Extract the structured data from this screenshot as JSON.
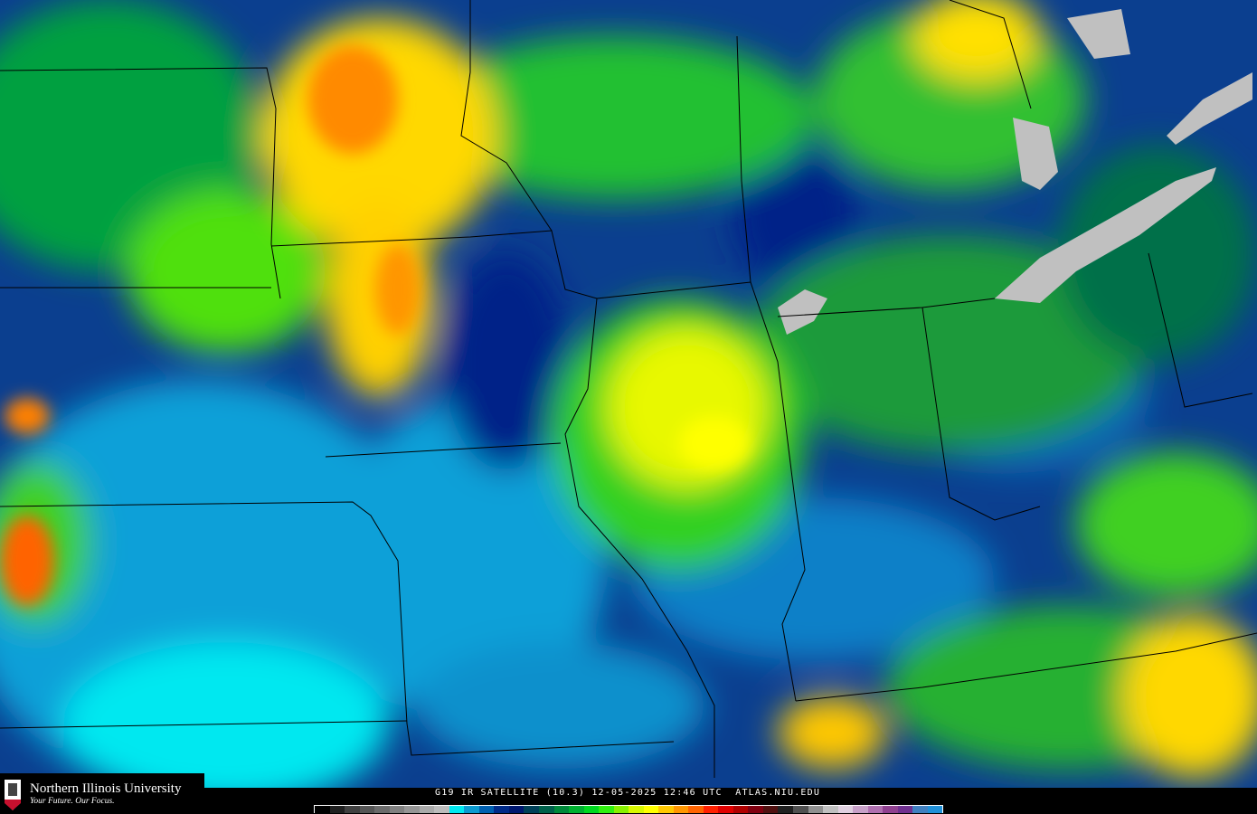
{
  "branding": {
    "university": "Northern Illinois University",
    "tagline": "Your Future. Our Focus.",
    "seal_text": "NIU"
  },
  "caption": {
    "satellite": "G19 IR SATELLITE (10.3)",
    "date": "12-05-2025",
    "time": "12:46 UTC",
    "site": "ATLAS.NIU.EDU"
  },
  "colors": {
    "background": "#0b3f8f",
    "cold_cloud": "#ffff00",
    "lake": "#c0c0c0"
  },
  "colorbar": [
    "#000000",
    "#202020",
    "#404040",
    "#555555",
    "#6a6a6a",
    "#808080",
    "#959595",
    "#aaaaaa",
    "#bcbcbc",
    "#00e8f0",
    "#0a9ad0",
    "#0060b0",
    "#002a88",
    "#001870",
    "#004058",
    "#00604a",
    "#00883a",
    "#00b030",
    "#00d820",
    "#30f010",
    "#88f000",
    "#d8f800",
    "#ffff00",
    "#ffc800",
    "#ff9600",
    "#ff6400",
    "#ff2000",
    "#e00000",
    "#b00000",
    "#800010",
    "#501010",
    "#202020",
    "#505050",
    "#909090",
    "#c0c0c0",
    "#e0d0e0",
    "#c8a0c8",
    "#b070b0",
    "#904090",
    "#703090",
    "#4080c0",
    "#2090d8"
  ]
}
